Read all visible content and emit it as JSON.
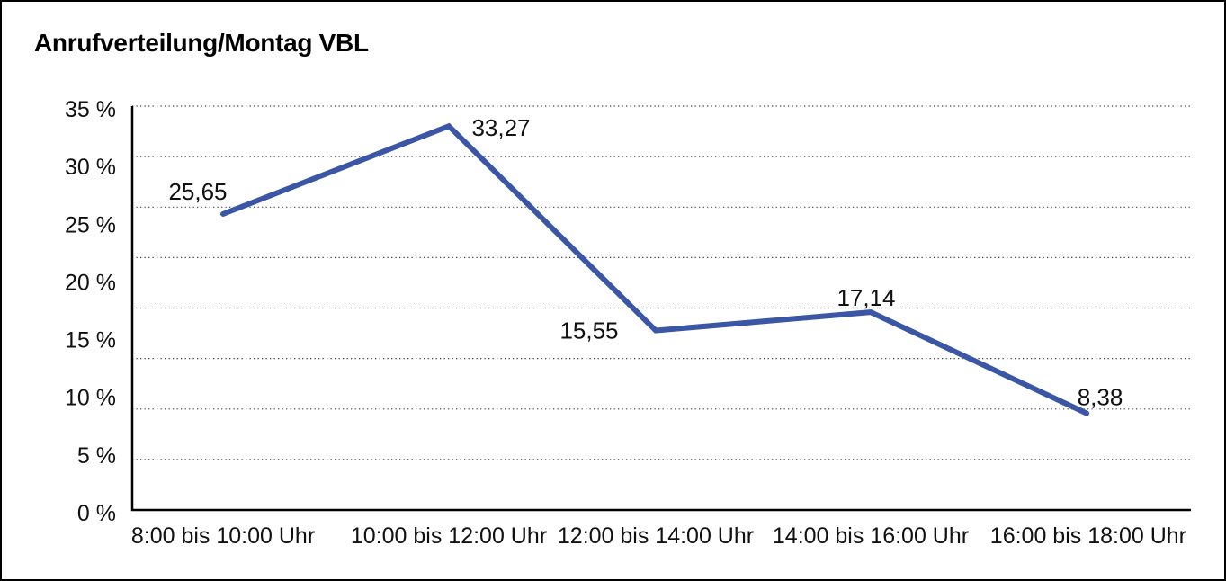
{
  "page": {
    "title": "Anrufverteilung/Montag VBL"
  },
  "chart_data": {
    "type": "line",
    "title": "Anrufverteilung/Montag VBL",
    "categories": [
      "8:00 bis 10:00 Uhr",
      "10:00 bis 12:00 Uhr",
      "12:00 bis 14:00 Uhr",
      "14:00 bis 16:00 Uhr",
      "16:00 bis 18:00 Uhr"
    ],
    "series": [
      {
        "name": "",
        "values": [
          25.65,
          33.27,
          15.55,
          17.14,
          8.38
        ]
      }
    ],
    "point_labels": [
      "25,65",
      "33,27",
      "15,55",
      "17,14",
      "8,38"
    ],
    "y_ticks": [
      35,
      30,
      25,
      20,
      15,
      10,
      5,
      0
    ],
    "y_tick_labels": [
      "35 %",
      "30 %",
      "25 %",
      "20 %",
      "15 %",
      "10 %",
      "5 %",
      "0 %"
    ],
    "ylim": [
      0,
      35
    ],
    "xlabel": "",
    "ylabel": "",
    "legend": "none",
    "grid": "horizontal-dotted",
    "gridline_divisions": 8,
    "colors": {
      "line": "#3A56A4",
      "axis": "#000000",
      "gridline": "#454545",
      "text": "#111111",
      "background": "#FFFFFF"
    }
  }
}
